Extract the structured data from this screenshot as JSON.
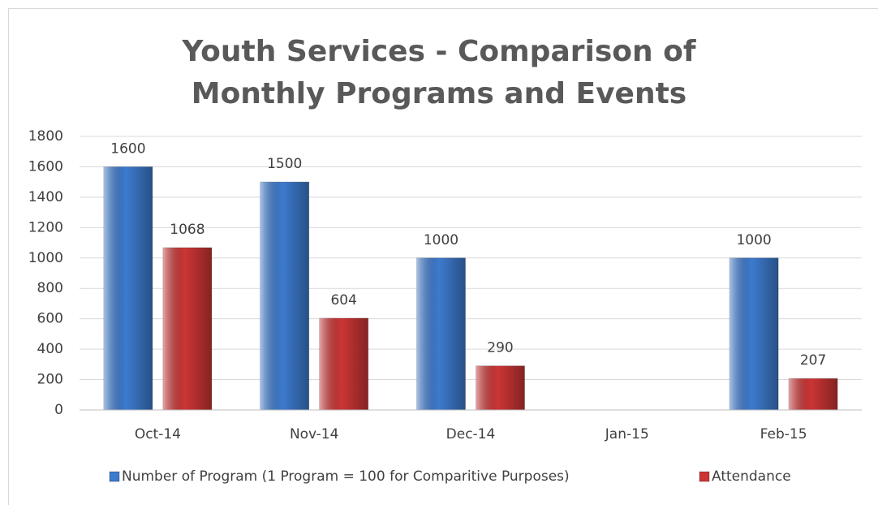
{
  "chart_data": {
    "type": "bar",
    "title": "Youth Services - Comparison of Monthly Programs and Events",
    "categories": [
      "Oct-14",
      "Nov-14",
      "Dec-14",
      "Jan-15",
      "Feb-15"
    ],
    "series": [
      {
        "name": "Number of Program (1 Program = 100 for Comparitive Purposes)",
        "color": "#3d7bcf",
        "values": [
          1600,
          1500,
          1000,
          null,
          1000
        ]
      },
      {
        "name": "Attendance",
        "color": "#cc3535",
        "values": [
          1068,
          604,
          290,
          null,
          207
        ]
      }
    ],
    "ylim": [
      0,
      1800
    ],
    "yticks": [
      0,
      200,
      400,
      600,
      800,
      1000,
      1200,
      1400,
      1600,
      1800
    ],
    "grid": true,
    "legend": "bottom"
  }
}
